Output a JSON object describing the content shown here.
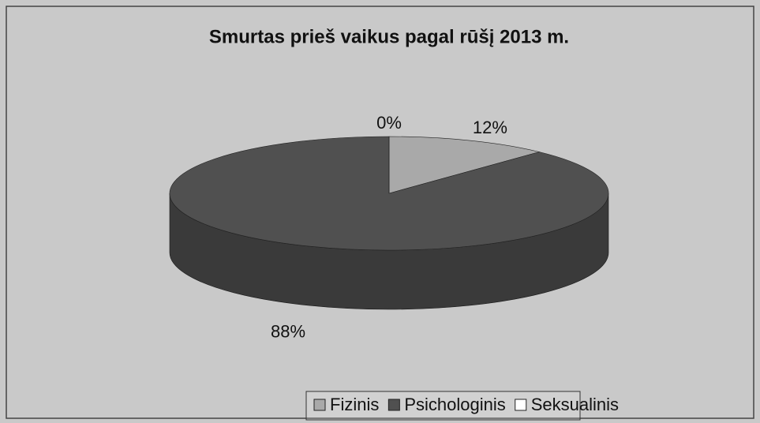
{
  "chart_data": {
    "type": "pie3d",
    "title": "Smurtas prieš vaikus pagal rūšį 2013 m.",
    "categories": [
      "Fizinis",
      "Psichologinis",
      "Seksualinis"
    ],
    "values": [
      12,
      88,
      0
    ],
    "value_labels": [
      "12%",
      "88%",
      "0%"
    ],
    "colors": [
      "#a9a9a9",
      "#505050",
      "#ffffff"
    ],
    "legend": "bottom"
  }
}
